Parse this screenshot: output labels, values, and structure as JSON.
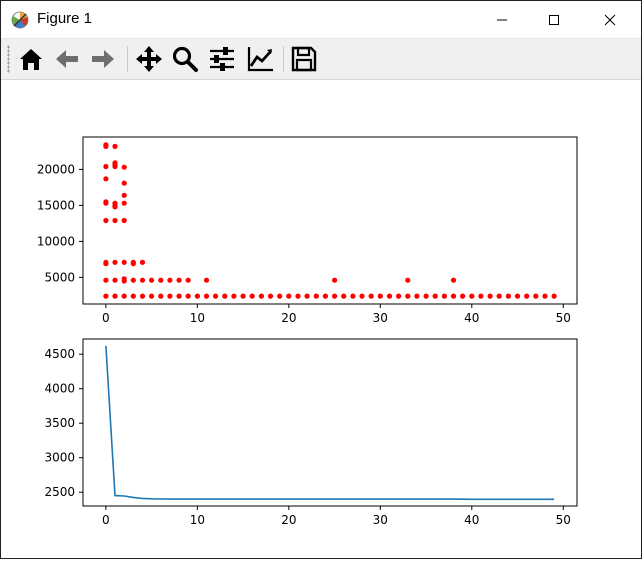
{
  "window": {
    "title": "Figure 1",
    "icons": {
      "app": "matplotlib-icon",
      "minimize": "minimize-icon",
      "maximize": "maximize-icon",
      "close": "close-icon"
    }
  },
  "toolbar": {
    "tools": [
      {
        "name": "home-icon",
        "tooltip": "Home"
      },
      {
        "name": "back-icon",
        "tooltip": "Back"
      },
      {
        "name": "forward-icon",
        "tooltip": "Forward"
      },
      {
        "name": "pan-icon",
        "tooltip": "Pan"
      },
      {
        "name": "zoom-icon",
        "tooltip": "Zoom"
      },
      {
        "name": "subplots-icon",
        "tooltip": "Subplots"
      },
      {
        "name": "customize-icon",
        "tooltip": "Customize"
      },
      {
        "name": "save-icon",
        "tooltip": "Save"
      }
    ]
  },
  "chart_data": [
    {
      "type": "scatter",
      "color": "#ff0000",
      "xlim": [
        -2.5,
        51.5
      ],
      "ylim": [
        1300,
        24500
      ],
      "xticks": [
        0,
        10,
        20,
        30,
        40,
        50
      ],
      "yticks": [
        5000,
        10000,
        15000,
        20000
      ],
      "points": [
        [
          0,
          23400
        ],
        [
          0,
          23200
        ],
        [
          0,
          20400
        ],
        [
          0,
          18700
        ],
        [
          0,
          15500
        ],
        [
          0,
          15300
        ],
        [
          0,
          12900
        ],
        [
          0,
          7100
        ],
        [
          0,
          6900
        ],
        [
          0,
          4600
        ],
        [
          0,
          2400
        ],
        [
          1,
          23200
        ],
        [
          1,
          20900
        ],
        [
          1,
          20600
        ],
        [
          1,
          20400
        ],
        [
          1,
          15300
        ],
        [
          1,
          15000
        ],
        [
          1,
          14800
        ],
        [
          1,
          12900
        ],
        [
          1,
          7100
        ],
        [
          1,
          4600
        ],
        [
          1,
          2400
        ],
        [
          2,
          20300
        ],
        [
          2,
          18100
        ],
        [
          2,
          16400
        ],
        [
          2,
          15300
        ],
        [
          2,
          12900
        ],
        [
          2,
          7100
        ],
        [
          2,
          4800
        ],
        [
          2,
          4500
        ],
        [
          2,
          2400
        ],
        [
          3,
          7100
        ],
        [
          3,
          6900
        ],
        [
          3,
          4600
        ],
        [
          3,
          2400
        ],
        [
          4,
          7100
        ],
        [
          4,
          4600
        ],
        [
          4,
          2400
        ],
        [
          5,
          4600
        ],
        [
          5,
          2400
        ],
        [
          6,
          4600
        ],
        [
          6,
          2400
        ],
        [
          7,
          4600
        ],
        [
          7,
          2400
        ],
        [
          8,
          4600
        ],
        [
          8,
          2400
        ],
        [
          9,
          4600
        ],
        [
          9,
          2400
        ],
        [
          10,
          2400
        ],
        [
          11,
          4600
        ],
        [
          11,
          2400
        ],
        [
          12,
          2400
        ],
        [
          13,
          2400
        ],
        [
          14,
          2400
        ],
        [
          15,
          2400
        ],
        [
          16,
          2400
        ],
        [
          17,
          2400
        ],
        [
          18,
          2400
        ],
        [
          19,
          2400
        ],
        [
          20,
          2400
        ],
        [
          21,
          2400
        ],
        [
          22,
          2400
        ],
        [
          23,
          2400
        ],
        [
          24,
          2400
        ],
        [
          25,
          4600
        ],
        [
          25,
          2400
        ],
        [
          26,
          2400
        ],
        [
          27,
          2400
        ],
        [
          28,
          2400
        ],
        [
          29,
          2400
        ],
        [
          30,
          2400
        ],
        [
          31,
          2400
        ],
        [
          32,
          2400
        ],
        [
          33,
          4600
        ],
        [
          33,
          2400
        ],
        [
          34,
          2400
        ],
        [
          35,
          2400
        ],
        [
          36,
          2400
        ],
        [
          37,
          2400
        ],
        [
          38,
          4600
        ],
        [
          38,
          2400
        ],
        [
          39,
          2400
        ],
        [
          40,
          2400
        ],
        [
          41,
          2400
        ],
        [
          42,
          2400
        ],
        [
          43,
          2400
        ],
        [
          44,
          2400
        ],
        [
          45,
          2400
        ],
        [
          46,
          2400
        ],
        [
          47,
          2400
        ],
        [
          48,
          2400
        ],
        [
          49,
          2400
        ]
      ]
    },
    {
      "type": "line",
      "color": "#1f77b4",
      "xlim": [
        -2.5,
        51.5
      ],
      "ylim": [
        2300,
        4720
      ],
      "xticks": [
        0,
        10,
        20,
        30,
        40,
        50
      ],
      "yticks": [
        2500,
        3000,
        3500,
        4000,
        4500
      ],
      "x": [
        0,
        1,
        2,
        3,
        4,
        5,
        6,
        7,
        8,
        9,
        10,
        15,
        20,
        25,
        30,
        35,
        38,
        39,
        40,
        45,
        49
      ],
      "y": [
        4620,
        2450,
        2445,
        2425,
        2410,
        2404,
        2401,
        2400,
        2400,
        2400,
        2400,
        2400,
        2400,
        2400,
        2400,
        2400,
        2400,
        2398,
        2397,
        2397,
        2397
      ]
    }
  ]
}
